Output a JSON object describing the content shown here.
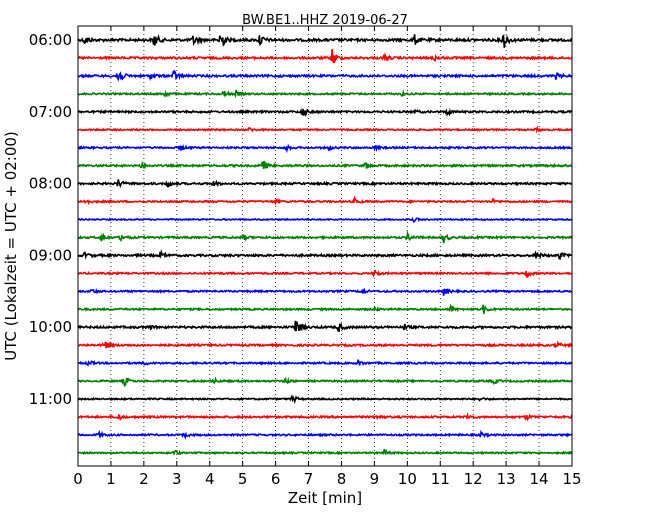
{
  "chart_data": {
    "type": "line",
    "title": "BW.BE1..HHZ 2019-06-27",
    "xlabel": "Zeit  [min]",
    "ylabel": "UTC (Lokalzeit = UTC + 02:00)",
    "xlim": [
      0,
      15
    ],
    "x_ticks": [
      "0",
      "1",
      "2",
      "3",
      "4",
      "5",
      "6",
      "7",
      "8",
      "9",
      "10",
      "11",
      "12",
      "13",
      "14",
      "15"
    ],
    "y_tick_labels": [
      "06:00",
      "07:00",
      "08:00",
      "09:00",
      "10:00",
      "11:00"
    ],
    "row_interval_minutes": 15,
    "start_time": "06:00",
    "grid": "vertical dotted",
    "trace_color_cycle": [
      "#000000",
      "#ff0000",
      "#0000ff",
      "#008000"
    ],
    "series": [
      {
        "start": "06:00",
        "color": "#000000",
        "noise": 1.2,
        "events": [
          {
            "t": 0.2,
            "amp": 5
          },
          {
            "t": 2.3,
            "amp": 9
          },
          {
            "t": 3.5,
            "amp": 6
          },
          {
            "t": 4.3,
            "amp": 14
          },
          {
            "t": 5.5,
            "amp": 7
          },
          {
            "t": 10.2,
            "amp": 6
          },
          {
            "t": 12.9,
            "amp": 11
          }
        ]
      },
      {
        "start": "06:15",
        "color": "#ff0000",
        "noise": 1.0,
        "events": [
          {
            "t": 7.7,
            "amp": 11
          },
          {
            "t": 9.3,
            "amp": 4
          },
          {
            "t": 10.8,
            "amp": 3
          }
        ]
      },
      {
        "start": "06:30",
        "color": "#0000ff",
        "noise": 1.0,
        "events": [
          {
            "t": 1.2,
            "amp": 11
          },
          {
            "t": 2.9,
            "amp": 6
          },
          {
            "t": 2.2,
            "amp": 3
          },
          {
            "t": 14.5,
            "amp": 3
          }
        ]
      },
      {
        "start": "06:45",
        "color": "#008000",
        "noise": 0.8,
        "events": [
          {
            "t": 2.6,
            "amp": 4
          },
          {
            "t": 4.4,
            "amp": 4
          },
          {
            "t": 4.8,
            "amp": 3
          },
          {
            "t": 9.8,
            "amp": 2
          }
        ]
      },
      {
        "start": "07:00",
        "color": "#000000",
        "noise": 0.9,
        "events": [
          {
            "t": 6.8,
            "amp": 6
          },
          {
            "t": 11.2,
            "amp": 3
          },
          {
            "t": 10.2,
            "amp": 2
          }
        ]
      },
      {
        "start": "07:15",
        "color": "#ff0000",
        "noise": 0.7,
        "events": [
          {
            "t": 13.9,
            "amp": 2
          },
          {
            "t": 5.2,
            "amp": 2
          }
        ]
      },
      {
        "start": "07:30",
        "color": "#0000ff",
        "noise": 0.8,
        "events": [
          {
            "t": 3.1,
            "amp": 3
          },
          {
            "t": 6.3,
            "amp": 3
          },
          {
            "t": 7.6,
            "amp": 2
          },
          {
            "t": 9.0,
            "amp": 2
          }
        ]
      },
      {
        "start": "07:45",
        "color": "#008000",
        "noise": 0.9,
        "events": [
          {
            "t": 5.6,
            "amp": 7
          },
          {
            "t": 8.7,
            "amp": 4
          },
          {
            "t": 1.9,
            "amp": 2
          }
        ]
      },
      {
        "start": "08:00",
        "color": "#000000",
        "noise": 0.9,
        "events": [
          {
            "t": 1.2,
            "amp": 5
          },
          {
            "t": 2.7,
            "amp": 4
          },
          {
            "t": 4.1,
            "amp": 4
          }
        ]
      },
      {
        "start": "08:15",
        "color": "#ff0000",
        "noise": 0.8,
        "events": [
          {
            "t": 0.2,
            "amp": 3
          },
          {
            "t": 6.0,
            "amp": 2
          },
          {
            "t": 8.4,
            "amp": 3
          },
          {
            "t": 12.6,
            "amp": 2
          }
        ]
      },
      {
        "start": "08:30",
        "color": "#0000ff",
        "noise": 0.6,
        "events": [
          {
            "t": 10.2,
            "amp": 2
          }
        ]
      },
      {
        "start": "08:45",
        "color": "#008000",
        "noise": 0.9,
        "events": [
          {
            "t": 0.7,
            "amp": 4
          },
          {
            "t": 1.3,
            "amp": 4
          },
          {
            "t": 5.0,
            "amp": 3
          },
          {
            "t": 10.0,
            "amp": 4
          },
          {
            "t": 11.1,
            "amp": 5
          }
        ]
      },
      {
        "start": "09:00",
        "color": "#000000",
        "noise": 1.0,
        "events": [
          {
            "t": 0.2,
            "amp": 3
          },
          {
            "t": 2.5,
            "amp": 3
          },
          {
            "t": 13.9,
            "amp": 4
          },
          {
            "t": 14.6,
            "amp": 4
          }
        ]
      },
      {
        "start": "09:15",
        "color": "#ff0000",
        "noise": 0.8,
        "events": [
          {
            "t": 9.0,
            "amp": 4
          },
          {
            "t": 13.6,
            "amp": 5
          }
        ]
      },
      {
        "start": "09:30",
        "color": "#0000ff",
        "noise": 0.8,
        "events": [
          {
            "t": 0.4,
            "amp": 3
          },
          {
            "t": 11.1,
            "amp": 4
          },
          {
            "t": 8.6,
            "amp": 3
          }
        ]
      },
      {
        "start": "09:45",
        "color": "#008000",
        "noise": 0.8,
        "events": [
          {
            "t": 12.3,
            "amp": 5
          },
          {
            "t": 11.3,
            "amp": 3
          },
          {
            "t": 9.0,
            "amp": 2
          }
        ]
      },
      {
        "start": "10:00",
        "color": "#000000",
        "noise": 1.0,
        "events": [
          {
            "t": 6.6,
            "amp": 13
          },
          {
            "t": 7.9,
            "amp": 5
          },
          {
            "t": 9.9,
            "amp": 3
          },
          {
            "t": 2.1,
            "amp": 3
          }
        ]
      },
      {
        "start": "10:15",
        "color": "#ff0000",
        "noise": 0.9,
        "events": [
          {
            "t": 0.8,
            "amp": 6
          },
          {
            "t": 14.5,
            "amp": 3
          }
        ]
      },
      {
        "start": "10:30",
        "color": "#0000ff",
        "noise": 0.8,
        "events": [
          {
            "t": 0.3,
            "amp": 3
          },
          {
            "t": 2.0,
            "amp": 2
          },
          {
            "t": 8.5,
            "amp": 3
          }
        ]
      },
      {
        "start": "10:45",
        "color": "#008000",
        "noise": 0.8,
        "events": [
          {
            "t": 1.4,
            "amp": 5
          },
          {
            "t": 4.1,
            "amp": 3
          },
          {
            "t": 6.3,
            "amp": 3
          },
          {
            "t": 12.6,
            "amp": 3
          }
        ]
      },
      {
        "start": "11:00",
        "color": "#000000",
        "noise": 0.7,
        "events": [
          {
            "t": 6.5,
            "amp": 4
          },
          {
            "t": 12.2,
            "amp": 2
          }
        ]
      },
      {
        "start": "11:15",
        "color": "#ff0000",
        "noise": 0.9,
        "events": [
          {
            "t": 1.2,
            "amp": 4
          },
          {
            "t": 9.1,
            "amp": 3
          },
          {
            "t": 11.8,
            "amp": 3
          },
          {
            "t": 13.6,
            "amp": 3
          }
        ]
      },
      {
        "start": "11:30",
        "color": "#0000ff",
        "noise": 0.8,
        "events": [
          {
            "t": 0.6,
            "amp": 4
          },
          {
            "t": 3.2,
            "amp": 3
          },
          {
            "t": 12.2,
            "amp": 3
          }
        ]
      },
      {
        "start": "11:45",
        "color": "#008000",
        "noise": 0.7,
        "events": [
          {
            "t": 2.9,
            "amp": 3
          },
          {
            "t": 9.3,
            "amp": 3
          }
        ]
      }
    ]
  }
}
